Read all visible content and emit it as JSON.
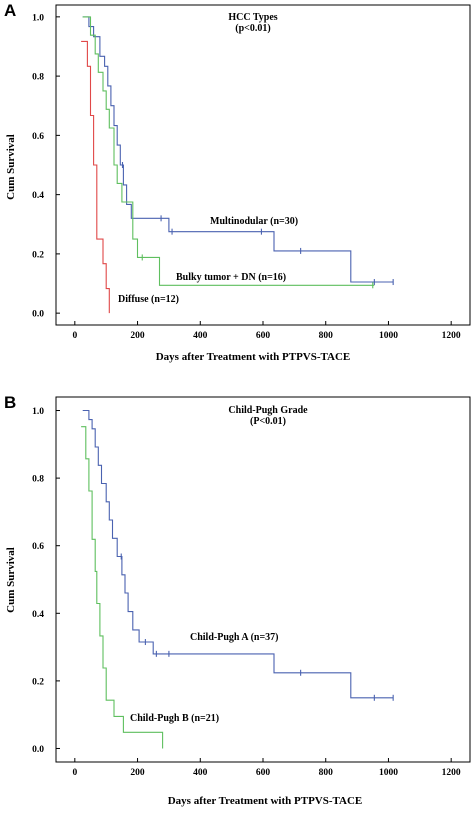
{
  "chart_data": [
    {
      "type": "line",
      "step": true,
      "panel": "A",
      "title": "HCC Types",
      "subtitle": "(p<0.01)",
      "xlabel": "Days after Treatment with PTPVS-TACE",
      "ylabel": "Cum Survival",
      "xlim": [
        -60,
        1260
      ],
      "ylim": [
        -0.04,
        1.04
      ],
      "xticks": [
        0,
        200,
        400,
        600,
        800,
        1000,
        1200
      ],
      "yticks": [
        0.0,
        0.2,
        0.4,
        0.6,
        0.8,
        1.0
      ],
      "ytick_labels": [
        "0.0",
        "0.2",
        "0.4",
        "0.6",
        "0.8",
        "1.0"
      ],
      "grid": false,
      "series": [
        {
          "name": "Multinodular (n=30)",
          "color": "#4a62b0",
          "points": [
            [
              25,
              1.0
            ],
            [
              45,
              1.0
            ],
            [
              45,
              0.967
            ],
            [
              60,
              0.967
            ],
            [
              60,
              0.933
            ],
            [
              80,
              0.933
            ],
            [
              80,
              0.867
            ],
            [
              95,
              0.867
            ],
            [
              95,
              0.833
            ],
            [
              105,
              0.833
            ],
            [
              105,
              0.767
            ],
            [
              115,
              0.767
            ],
            [
              115,
              0.7
            ],
            [
              125,
              0.7
            ],
            [
              125,
              0.633
            ],
            [
              135,
              0.633
            ],
            [
              135,
              0.567
            ],
            [
              145,
              0.567
            ],
            [
              145,
              0.5
            ],
            [
              155,
              0.5
            ],
            [
              155,
              0.433
            ],
            [
              165,
              0.433
            ],
            [
              165,
              0.367
            ],
            [
              180,
              0.367
            ],
            [
              180,
              0.32
            ],
            [
              300,
              0.32
            ],
            [
              300,
              0.275
            ],
            [
              635,
              0.275
            ],
            [
              635,
              0.21
            ],
            [
              880,
              0.21
            ],
            [
              880,
              0.105
            ],
            [
              1015,
              0.105
            ]
          ],
          "censors": [
            [
              152,
              0.5
            ],
            [
              275,
              0.32
            ],
            [
              310,
              0.275
            ],
            [
              595,
              0.275
            ],
            [
              720,
              0.21
            ],
            [
              955,
              0.105
            ],
            [
              1015,
              0.105
            ]
          ]
        },
        {
          "name": "Bulky tumor + DN (n=16)",
          "color": "#5fbf5f",
          "points": [
            [
              25,
              1.0
            ],
            [
              50,
              1.0
            ],
            [
              50,
              0.938
            ],
            [
              65,
              0.938
            ],
            [
              65,
              0.875
            ],
            [
              75,
              0.875
            ],
            [
              75,
              0.813
            ],
            [
              90,
              0.813
            ],
            [
              90,
              0.75
            ],
            [
              100,
              0.75
            ],
            [
              100,
              0.688
            ],
            [
              110,
              0.688
            ],
            [
              110,
              0.625
            ],
            [
              125,
              0.625
            ],
            [
              125,
              0.5
            ],
            [
              135,
              0.5
            ],
            [
              135,
              0.438
            ],
            [
              150,
              0.438
            ],
            [
              150,
              0.375
            ],
            [
              185,
              0.375
            ],
            [
              185,
              0.25
            ],
            [
              200,
              0.25
            ],
            [
              200,
              0.188
            ],
            [
              270,
              0.188
            ],
            [
              270,
              0.094
            ],
            [
              955,
              0.094
            ]
          ],
          "censors": [
            [
              215,
              0.188
            ],
            [
              950,
              0.094
            ]
          ]
        },
        {
          "name": "Diffuse (n=12)",
          "color": "#e04848",
          "points": [
            [
              20,
              0.917
            ],
            [
              40,
              0.917
            ],
            [
              40,
              0.833
            ],
            [
              50,
              0.833
            ],
            [
              50,
              0.667
            ],
            [
              60,
              0.667
            ],
            [
              60,
              0.5
            ],
            [
              70,
              0.5
            ],
            [
              70,
              0.25
            ],
            [
              90,
              0.25
            ],
            [
              90,
              0.167
            ],
            [
              100,
              0.167
            ],
            [
              100,
              0.083
            ],
            [
              110,
              0.083
            ],
            [
              110,
              0.0
            ]
          ],
          "censors": []
        }
      ]
    },
    {
      "type": "line",
      "step": true,
      "panel": "B",
      "title": "Child-Pugh Grade",
      "subtitle": "(P<0.01)",
      "xlabel": "Days after Treatment with PTPVS-TACE",
      "ylabel": "Cum Survival",
      "xlim": [
        -60,
        1260
      ],
      "ylim": [
        -0.04,
        1.04
      ],
      "xticks": [
        0,
        200,
        400,
        600,
        800,
        1000,
        1200
      ],
      "yticks": [
        0.0,
        0.2,
        0.4,
        0.6,
        0.8,
        1.0
      ],
      "ytick_labels": [
        "0.0",
        "0.2",
        "0.4",
        "0.6",
        "0.8",
        "1.0"
      ],
      "grid": false,
      "series": [
        {
          "name": "Child-Pugh A (n=37)",
          "color": "#4a62b0",
          "points": [
            [
              25,
              1.0
            ],
            [
              45,
              1.0
            ],
            [
              45,
              0.973
            ],
            [
              55,
              0.973
            ],
            [
              55,
              0.946
            ],
            [
              65,
              0.946
            ],
            [
              65,
              0.892
            ],
            [
              75,
              0.892
            ],
            [
              75,
              0.838
            ],
            [
              85,
              0.838
            ],
            [
              85,
              0.784
            ],
            [
              100,
              0.784
            ],
            [
              100,
              0.73
            ],
            [
              110,
              0.73
            ],
            [
              110,
              0.676
            ],
            [
              120,
              0.676
            ],
            [
              120,
              0.622
            ],
            [
              135,
              0.622
            ],
            [
              135,
              0.568
            ],
            [
              150,
              0.568
            ],
            [
              150,
              0.514
            ],
            [
              160,
              0.514
            ],
            [
              160,
              0.46
            ],
            [
              170,
              0.46
            ],
            [
              170,
              0.405
            ],
            [
              185,
              0.405
            ],
            [
              185,
              0.351
            ],
            [
              205,
              0.351
            ],
            [
              205,
              0.315
            ],
            [
              250,
              0.315
            ],
            [
              250,
              0.28
            ],
            [
              635,
              0.28
            ],
            [
              635,
              0.224
            ],
            [
              880,
              0.224
            ],
            [
              880,
              0.15
            ],
            [
              1015,
              0.15
            ]
          ],
          "censors": [
            [
              148,
              0.568
            ],
            [
              225,
              0.315
            ],
            [
              260,
              0.28
            ],
            [
              300,
              0.28
            ],
            [
              720,
              0.224
            ],
            [
              955,
              0.15
            ],
            [
              1015,
              0.15
            ]
          ]
        },
        {
          "name": "Child-Pugh B (n=21)",
          "color": "#5fbf5f",
          "points": [
            [
              20,
              0.952
            ],
            [
              35,
              0.952
            ],
            [
              35,
              0.857
            ],
            [
              45,
              0.857
            ],
            [
              45,
              0.762
            ],
            [
              55,
              0.762
            ],
            [
              55,
              0.619
            ],
            [
              65,
              0.619
            ],
            [
              65,
              0.524
            ],
            [
              70,
              0.524
            ],
            [
              70,
              0.429
            ],
            [
              80,
              0.429
            ],
            [
              80,
              0.333
            ],
            [
              90,
              0.333
            ],
            [
              90,
              0.238
            ],
            [
              100,
              0.238
            ],
            [
              100,
              0.143
            ],
            [
              125,
              0.143
            ],
            [
              125,
              0.095
            ],
            [
              155,
              0.095
            ],
            [
              155,
              0.048
            ],
            [
              280,
              0.048
            ],
            [
              280,
              0.0
            ]
          ],
          "censors": []
        }
      ]
    }
  ]
}
